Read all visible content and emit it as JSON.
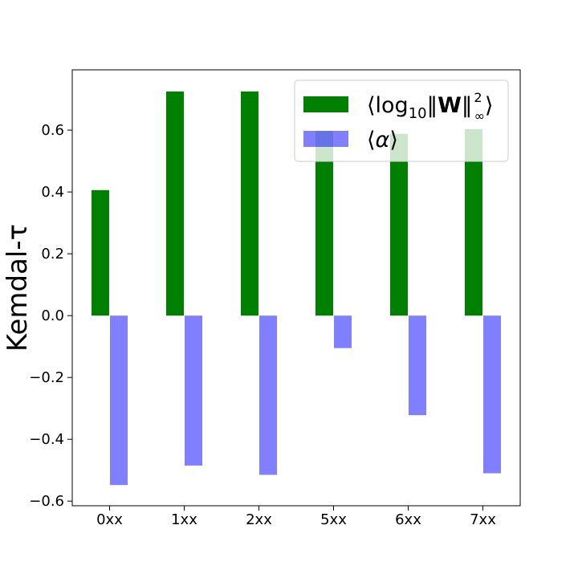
{
  "chart_data": {
    "type": "bar",
    "categories": [
      "0xx",
      "1xx",
      "2xx",
      "5xx",
      "6xx",
      "7xx"
    ],
    "series": [
      {
        "name": "⟨log₁₀‖W‖²∞⟩",
        "legend": {
          "prefix": "⟨log",
          "sub1": "10",
          "mid": "‖",
          "bold": "W",
          "mid2": "‖",
          "sup": "2",
          "sub2": "∞",
          "suffix": "⟩"
        },
        "values": [
          0.406,
          0.725,
          0.725,
          0.597,
          0.588,
          0.603
        ],
        "color": "#008000",
        "opacity": 1.0
      },
      {
        "name": "⟨α⟩",
        "legend": {
          "prefix": "⟨",
          "italic": "α",
          "suffix": "⟩"
        },
        "values": [
          -0.548,
          -0.485,
          -0.515,
          -0.105,
          -0.322,
          -0.51
        ],
        "color": "#0000ff",
        "opacity": 0.5
      }
    ],
    "title": "",
    "xlabel": "",
    "ylabel": "Kemdal-τ",
    "ylim": [
      -0.615,
      0.795
    ],
    "yticks": [
      -0.6,
      -0.4,
      -0.2,
      0.0,
      0.2,
      0.4,
      0.6
    ],
    "ytick_labels": [
      "−0.6",
      "−0.4",
      "−0.2",
      "0.0",
      "0.2",
      "0.4",
      "0.6"
    ],
    "grid": false,
    "legend_position": "top-right"
  }
}
